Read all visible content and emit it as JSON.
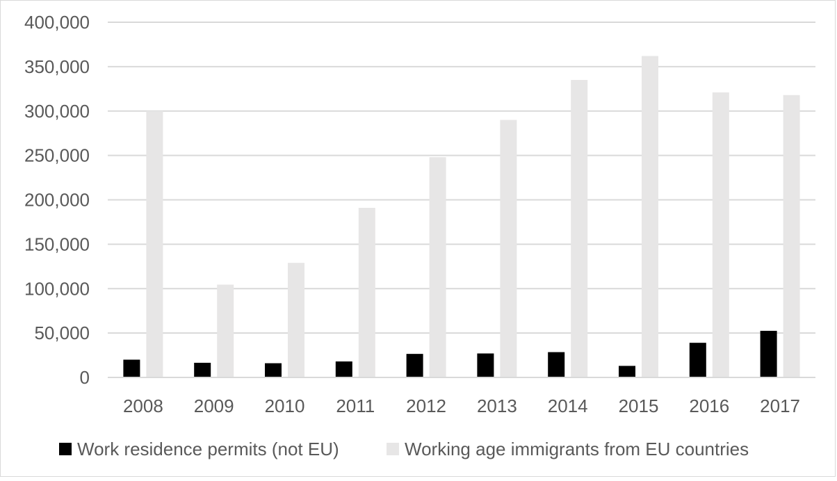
{
  "chart_data": {
    "type": "bar",
    "title": "",
    "xlabel": "",
    "ylabel": "",
    "categories": [
      "2008",
      "2009",
      "2010",
      "2011",
      "2012",
      "2013",
      "2014",
      "2015",
      "2016",
      "2017"
    ],
    "series": [
      {
        "name": "Work residence permits (not EU)",
        "color": "#000000",
        "values": [
          20000,
          16500,
          16000,
          18000,
          26500,
          27000,
          28500,
          13000,
          39000,
          52500
        ]
      },
      {
        "name": "Working age immigrants from EU countries",
        "color": "#e7e6e6",
        "values": [
          300000,
          104500,
          129000,
          191000,
          248000,
          290000,
          335000,
          362000,
          321000,
          318000
        ]
      }
    ],
    "ylim": [
      0,
      400000
    ],
    "yticks": [
      "0",
      "50,000",
      "100,000",
      "150,000",
      "200,000",
      "250,000",
      "300,000",
      "350,000",
      "400,000"
    ],
    "grid": true,
    "legend_position": "bottom"
  }
}
